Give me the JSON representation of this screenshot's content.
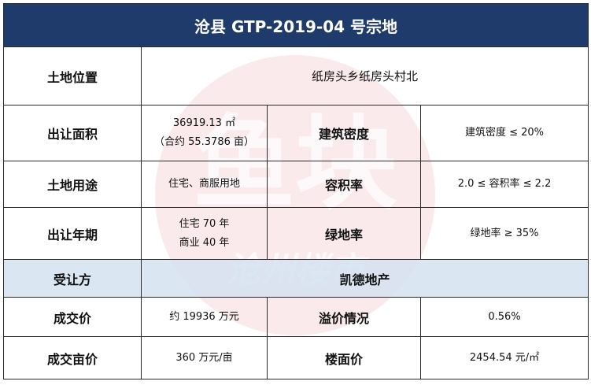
{
  "title": "沧县 GTP-2019-04 号宗地",
  "location": {
    "label": "土地位置",
    "value": "纸房头乡纸房头村北"
  },
  "area": {
    "label": "出让面积",
    "value_line1": "36919.13 ㎡",
    "value_line2": "（合约 55.3786 亩）",
    "density_label": "建筑密度",
    "density_value": "建筑密度 ≤ 20%"
  },
  "use": {
    "label": "土地用途",
    "value": "住宅、商服用地",
    "far_label": "容积率",
    "far_value": "2.0 ≤ 容积率 ≤ 2.2"
  },
  "term": {
    "label": "出让年期",
    "value_line1": "住宅 70 年",
    "value_line2": "商业 40 年",
    "green_label": "绿地率",
    "green_value": "绿地率 ≥ 35%"
  },
  "buyer": {
    "label": "受让方",
    "value": "凯德地产"
  },
  "deal": {
    "label": "成交价",
    "value": "约 19936 万元",
    "premium_label": "溢价情况",
    "premium_value": "0.56%"
  },
  "unit": {
    "label": "成交亩价",
    "value": "360 万元/亩",
    "floor_label": "楼面价",
    "floor_value": "2454.54 元/㎡"
  },
  "watermark": {
    "main_text": "鱼块",
    "sub_text": "沧州楼市",
    "color": "#e59aa3"
  },
  "colors": {
    "title_bg": "#1f3b6b",
    "highlight_row_bg": "#d5e2f1"
  }
}
